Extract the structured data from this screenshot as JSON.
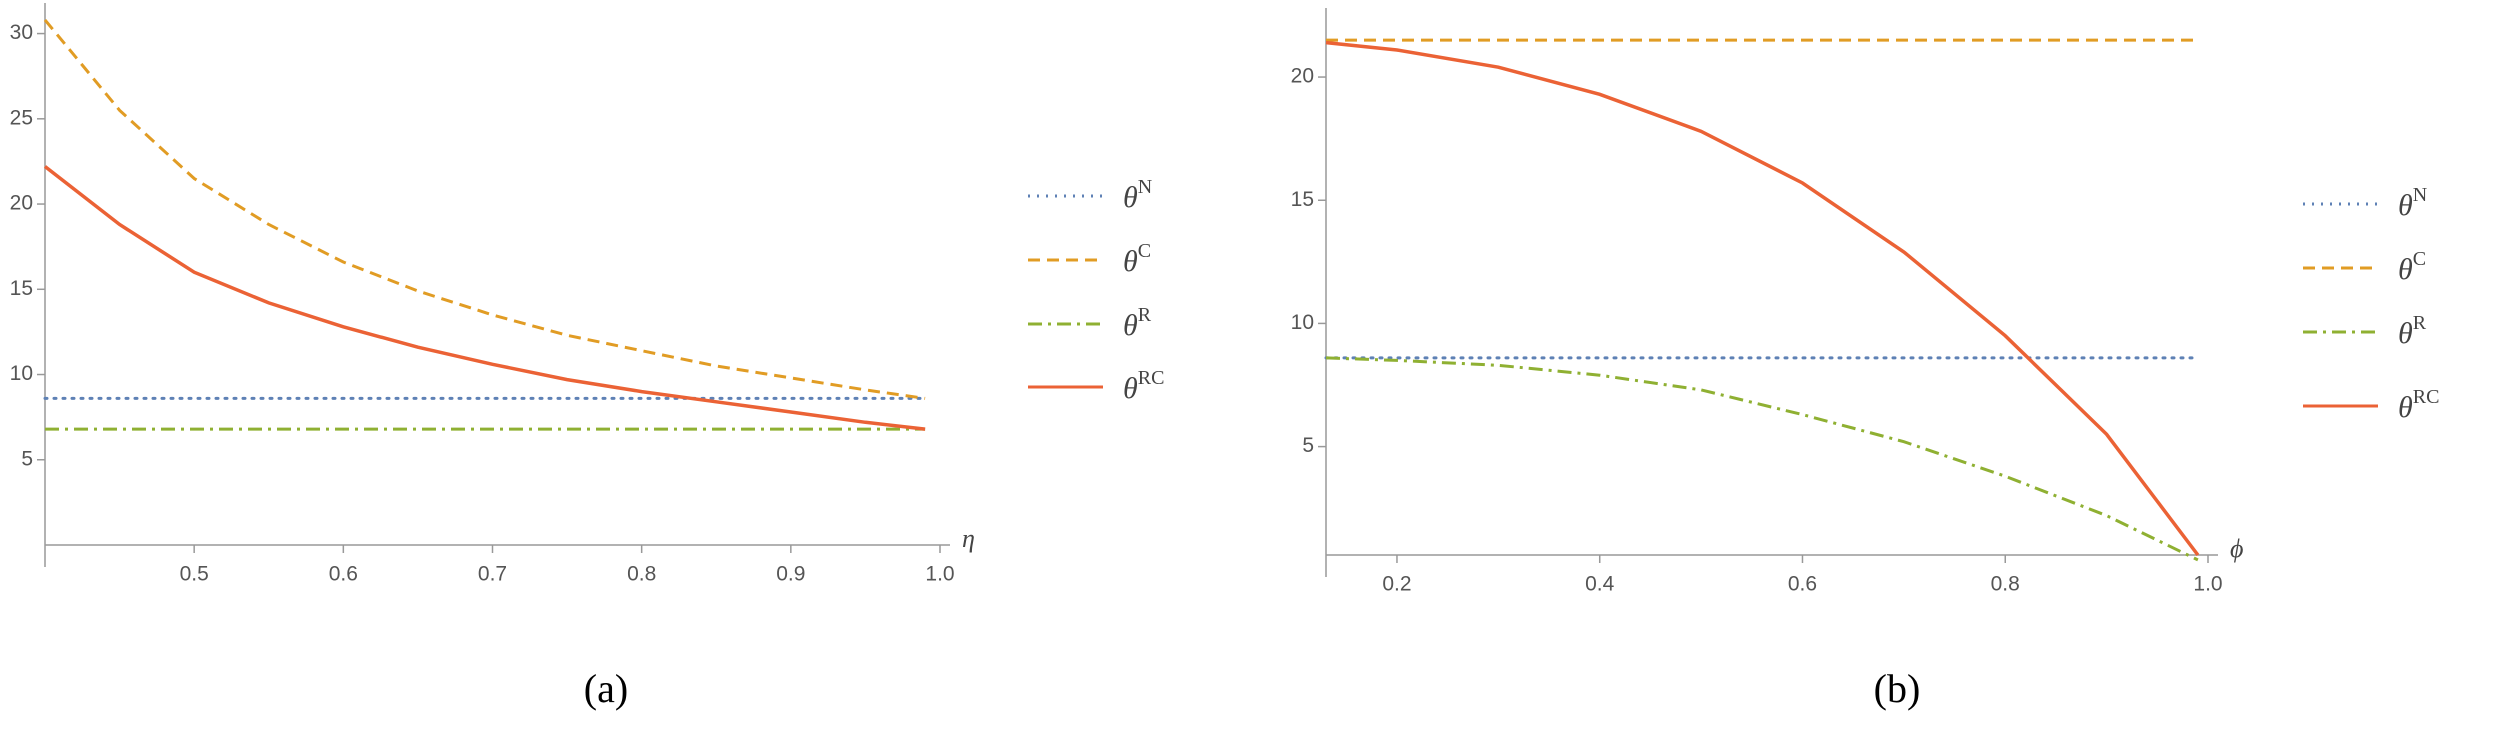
{
  "chart_data": [
    {
      "type": "line",
      "caption": "(a)",
      "xlabel": "η",
      "x": [
        0.4,
        0.45,
        0.5,
        0.55,
        0.6,
        0.65,
        0.7,
        0.75,
        0.8,
        0.85,
        0.9,
        0.95,
        0.99
      ],
      "xlim": [
        0.4,
        1.0
      ],
      "xticks": [
        0.5,
        0.6,
        0.7,
        0.8,
        0.9,
        {
          "value": 1,
          "label": "1.0"
        }
      ],
      "ylim": [
        0,
        31.5
      ],
      "yticks": [
        5,
        10,
        15,
        20,
        25,
        30
      ],
      "grid": false,
      "series": [
        {
          "name": "θ^N",
          "color": "#5e81b5",
          "style": "dotted",
          "values": [
            8.6,
            8.6,
            8.6,
            8.6,
            8.6,
            8.6,
            8.6,
            8.6,
            8.6,
            8.6,
            8.6,
            8.6,
            8.6
          ]
        },
        {
          "name": "θ^C",
          "color": "#e19c24",
          "style": "dashed",
          "values": [
            30.8,
            25.5,
            21.5,
            18.8,
            16.6,
            14.9,
            13.5,
            12.3,
            11.4,
            10.5,
            9.8,
            9.1,
            8.6
          ]
        },
        {
          "name": "θ^R",
          "color": "#8fb032",
          "style": "dashdot",
          "values": [
            6.8,
            6.8,
            6.8,
            6.8,
            6.8,
            6.8,
            6.8,
            6.8,
            6.8,
            6.8,
            6.8,
            6.8,
            6.8
          ]
        },
        {
          "name": "θ^RC",
          "color": "#eb6235",
          "style": "solid",
          "values": [
            22.2,
            18.8,
            16.0,
            14.2,
            12.8,
            11.6,
            10.6,
            9.7,
            9.0,
            8.4,
            7.8,
            7.2,
            6.8
          ]
        }
      ]
    },
    {
      "type": "line",
      "caption": "(b)",
      "xlabel": "ϕ",
      "x": [
        0.13,
        0.2,
        0.3,
        0.4,
        0.5,
        0.6,
        0.7,
        0.8,
        0.9,
        0.99
      ],
      "xlim": [
        0.13,
        1.0
      ],
      "xticks": [
        0.2,
        0.4,
        0.6,
        0.8,
        {
          "value": 1,
          "label": "1.0"
        }
      ],
      "ylim": [
        0.6,
        22.6
      ],
      "yticks": [
        5,
        10,
        15,
        20
      ],
      "grid": false,
      "series": [
        {
          "name": "θ^N",
          "color": "#5e81b5",
          "style": "dotted",
          "values": [
            8.6,
            8.6,
            8.6,
            8.6,
            8.6,
            8.6,
            8.6,
            8.6,
            8.6,
            8.6
          ]
        },
        {
          "name": "θ^C",
          "color": "#e19c24",
          "style": "dashed",
          "values": [
            21.5,
            21.5,
            21.5,
            21.5,
            21.5,
            21.5,
            21.5,
            21.5,
            21.5,
            21.5
          ]
        },
        {
          "name": "θ^R",
          "color": "#8fb032",
          "style": "dashdot",
          "values": [
            8.6,
            8.5,
            8.3,
            7.9,
            7.3,
            6.3,
            5.2,
            3.8,
            2.2,
            0.4
          ]
        },
        {
          "name": "θ^RC",
          "color": "#eb6235",
          "style": "solid",
          "values": [
            21.4,
            21.1,
            20.4,
            19.3,
            17.8,
            15.7,
            12.9,
            9.5,
            5.5,
            0.6
          ]
        }
      ]
    }
  ]
}
